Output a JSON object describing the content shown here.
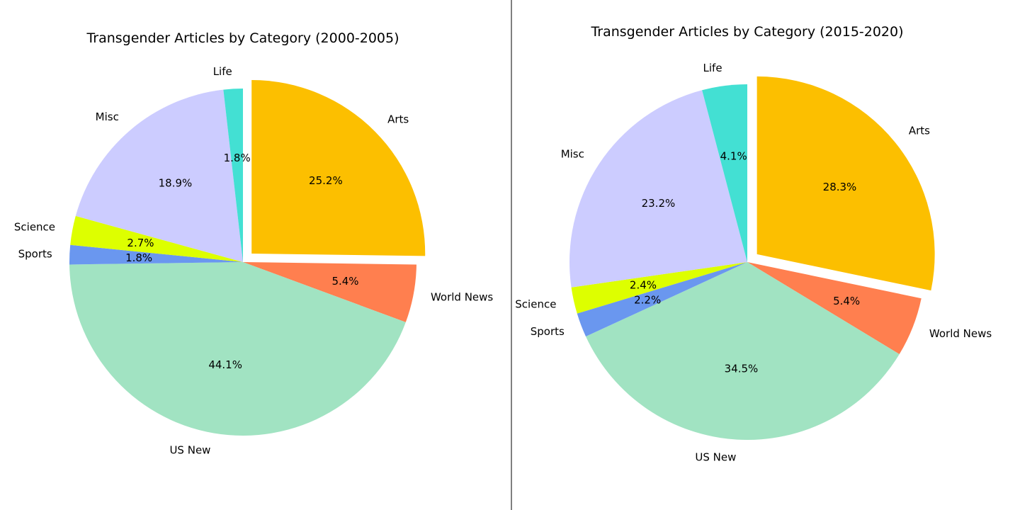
{
  "chart_data": [
    {
      "type": "pie",
      "title": "Transgender Articles by Category (2000-2005)",
      "labels": [
        "Arts",
        "World News",
        "US New",
        "Sports",
        "Science",
        "Misc",
        "Life"
      ],
      "values": [
        25.2,
        5.4,
        44.1,
        1.8,
        2.7,
        18.9,
        1.8
      ],
      "percent_labels": [
        "25.2%",
        "5.4%",
        "44.1%",
        "1.8%",
        "2.7%",
        "18.9%",
        "1.8%"
      ],
      "colors": [
        "#fcbf00",
        "#ff7f4f",
        "#a1e3c2",
        "#6a97ef",
        "#ddff00",
        "#ccccff",
        "#43e0d3"
      ],
      "explode": [
        0.07,
        0,
        0,
        0,
        0,
        0,
        0
      ],
      "start_angle_deg": 90,
      "direction": "clockwise"
    },
    {
      "type": "pie",
      "title": "Transgender Articles by Category (2015-2020)",
      "labels": [
        "Arts",
        "World News",
        "US New",
        "Sports",
        "Science",
        "Misc",
        "Life"
      ],
      "values": [
        28.3,
        5.4,
        34.5,
        2.2,
        2.4,
        23.2,
        4.1
      ],
      "percent_labels": [
        "28.3%",
        "5.4%",
        "34.5%",
        "2.2%",
        "2.4%",
        "23.2%",
        "4.1%"
      ],
      "colors": [
        "#fcbf00",
        "#ff7f4f",
        "#a1e3c2",
        "#6a97ef",
        "#ddff00",
        "#ccccff",
        "#43e0d3"
      ],
      "explode": [
        0.07,
        0,
        0,
        0,
        0,
        0,
        0
      ],
      "start_angle_deg": 90,
      "direction": "clockwise"
    }
  ],
  "divider_color": "#808080"
}
